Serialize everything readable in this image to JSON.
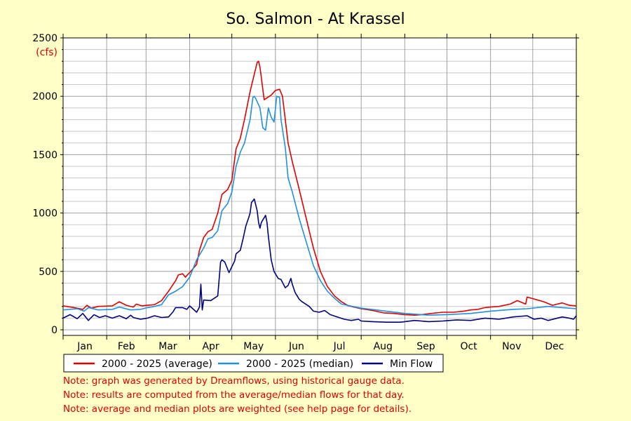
{
  "chart_data": {
    "type": "line",
    "title": "So. Salmon - At Krassel",
    "unit_label": "(cfs)",
    "ylim": [
      0,
      2500
    ],
    "y_ticks": [
      0,
      500,
      1000,
      1500,
      2000,
      2500
    ],
    "xlim": [
      0,
      365
    ],
    "month_starts": [
      0,
      31,
      59,
      90,
      120,
      151,
      181,
      212,
      243,
      273,
      304,
      334,
      365
    ],
    "months": [
      "Jan",
      "Feb",
      "Mar",
      "Apr",
      "May",
      "Jun",
      "Jul",
      "Aug",
      "Sep",
      "Oct",
      "Nov",
      "Dec"
    ],
    "grid": true,
    "legend_position": "bottom",
    "series": [
      {
        "name": "2000 - 2025 (average)",
        "color": "#e00000",
        "x": [
          0,
          8,
          14,
          17,
          20,
          25,
          35,
          40,
          45,
          50,
          52,
          56,
          60,
          65,
          70,
          75,
          80,
          82,
          85,
          87,
          88,
          90,
          95,
          97,
          100,
          103,
          106,
          110,
          113,
          117,
          120,
          123,
          126,
          129,
          133,
          138,
          139,
          140,
          143,
          148,
          151,
          154,
          156,
          158,
          160,
          163,
          168,
          173,
          178,
          183,
          188,
          193,
          198,
          203,
          212,
          220,
          228,
          235,
          243,
          250,
          255,
          262,
          270,
          278,
          285,
          290,
          295,
          300,
          304,
          310,
          318,
          323,
          329,
          330,
          336,
          342,
          348,
          355,
          360,
          365
        ],
        "y": [
          205,
          190,
          175,
          210,
          185,
          200,
          205,
          240,
          210,
          195,
          220,
          205,
          210,
          215,
          250,
          330,
          420,
          470,
          480,
          450,
          465,
          490,
          560,
          680,
          790,
          840,
          860,
          1000,
          1160,
          1200,
          1280,
          1550,
          1640,
          1800,
          2040,
          2290,
          2300,
          2250,
          1970,
          2010,
          2050,
          2060,
          2000,
          1800,
          1600,
          1440,
          1200,
          950,
          700,
          500,
          370,
          290,
          240,
          205,
          180,
          165,
          145,
          140,
          130,
          125,
          130,
          140,
          150,
          150,
          160,
          170,
          175,
          190,
          195,
          200,
          220,
          250,
          220,
          280,
          260,
          240,
          210,
          230,
          210,
          205
        ]
      },
      {
        "name": "2000 - 2025 (median)",
        "color": "#2090e0",
        "x": [
          0,
          10,
          15,
          18,
          25,
          35,
          40,
          48,
          55,
          60,
          65,
          70,
          75,
          80,
          85,
          90,
          95,
          100,
          103,
          106,
          110,
          113,
          117,
          120,
          123,
          126,
          129,
          133,
          135,
          136,
          137,
          140,
          142,
          144,
          146,
          148,
          150,
          151,
          152,
          154,
          155,
          158,
          160,
          163,
          168,
          173,
          178,
          183,
          188,
          193,
          198,
          212,
          243,
          260,
          273,
          290,
          304,
          320,
          330,
          345,
          355,
          365
        ],
        "y": [
          170,
          180,
          160,
          190,
          170,
          175,
          195,
          170,
          175,
          190,
          200,
          215,
          300,
          330,
          370,
          450,
          600,
          700,
          780,
          790,
          850,
          1020,
          1080,
          1180,
          1400,
          1520,
          1600,
          1800,
          1990,
          2000,
          1980,
          1900,
          1730,
          1710,
          1900,
          1820,
          1780,
          1890,
          2000,
          1990,
          1800,
          1560,
          1300,
          1180,
          950,
          750,
          550,
          420,
          330,
          270,
          220,
          185,
          140,
          125,
          130,
          140,
          160,
          175,
          180,
          200,
          190,
          180
        ]
      },
      {
        "name": "Min Flow",
        "color": "#000080",
        "x": [
          0,
          5,
          10,
          14,
          18,
          22,
          26,
          30,
          35,
          40,
          45,
          48,
          50,
          55,
          60,
          65,
          70,
          75,
          78,
          80,
          85,
          88,
          90,
          95,
          97,
          98,
          99,
          100,
          105,
          110,
          112,
          113,
          115,
          118,
          120,
          122,
          123,
          126,
          128,
          130,
          132,
          133,
          134,
          136,
          138,
          139,
          140,
          141,
          142,
          143,
          144,
          145,
          146,
          148,
          150,
          151,
          153,
          155,
          158,
          160,
          162,
          163,
          165,
          168,
          170,
          175,
          178,
          182,
          186,
          190,
          195,
          200,
          205,
          210,
          212,
          220,
          230,
          240,
          250,
          260,
          270,
          280,
          290,
          300,
          310,
          320,
          330,
          335,
          340,
          345,
          350,
          355,
          360,
          363,
          365
        ],
        "y": [
          100,
          130,
          95,
          140,
          80,
          130,
          105,
          120,
          100,
          120,
          95,
          125,
          105,
          90,
          100,
          120,
          105,
          110,
          150,
          190,
          190,
          175,
          205,
          150,
          195,
          390,
          170,
          255,
          250,
          290,
          580,
          600,
          580,
          490,
          540,
          590,
          650,
          680,
          780,
          890,
          960,
          1000,
          1090,
          1120,
          1020,
          920,
          870,
          920,
          940,
          960,
          980,
          920,
          800,
          600,
          500,
          480,
          440,
          430,
          360,
          380,
          440,
          390,
          320,
          260,
          240,
          200,
          160,
          150,
          165,
          130,
          110,
          90,
          80,
          90,
          75,
          70,
          65,
          65,
          80,
          70,
          75,
          85,
          80,
          100,
          90,
          110,
          120,
          90,
          100,
          80,
          95,
          110,
          100,
          90,
          120
        ]
      }
    ]
  },
  "notes": [
    "Note: graph was generated by Dreamflows, using historical gauge data.",
    "Note: results are computed from the average/median flows for that day.",
    "Note: average and median plots are weighted (see help page for details)."
  ]
}
